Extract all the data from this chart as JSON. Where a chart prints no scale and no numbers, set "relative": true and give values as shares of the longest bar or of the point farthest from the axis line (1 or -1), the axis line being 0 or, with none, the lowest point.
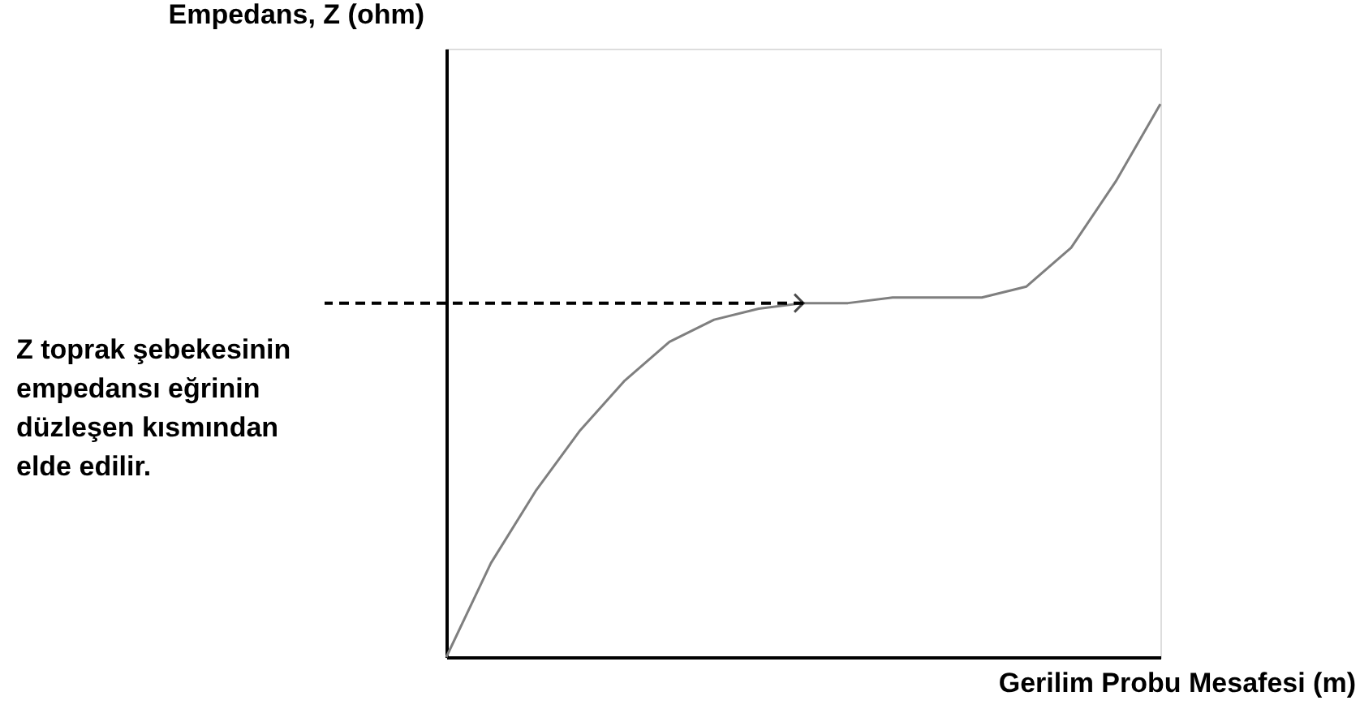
{
  "chart_data": {
    "type": "line",
    "relative": true,
    "xlabel": "Gerilim Probu Mesafesi (m)",
    "ylabel": "Empedans, Z (ohm)",
    "categories": [
      null,
      null,
      null,
      null,
      null,
      null,
      null,
      null,
      null,
      null,
      null,
      null,
      null,
      null,
      null,
      null,
      null
    ],
    "series": [
      {
        "color": "#7f7f7f",
        "values": [
          0,
          0.17,
          0.3,
          0.41,
          0.5,
          0.57,
          0.61,
          0.63,
          0.64,
          0.64,
          0.65,
          0.65,
          0.65,
          0.67,
          0.74,
          0.86,
          1.0
        ]
      }
    ],
    "ref_lines": [
      {
        "axis": "y",
        "value": 0.64,
        "color": "#000000",
        "line_style": "dashed"
      }
    ],
    "annotations": [
      "Z toprak şebekesinin empedansı eğrinin düzleşen kısmından elde edilir."
    ],
    "grid": false,
    "legend": false,
    "marker": "none",
    "line_style": "solid"
  }
}
